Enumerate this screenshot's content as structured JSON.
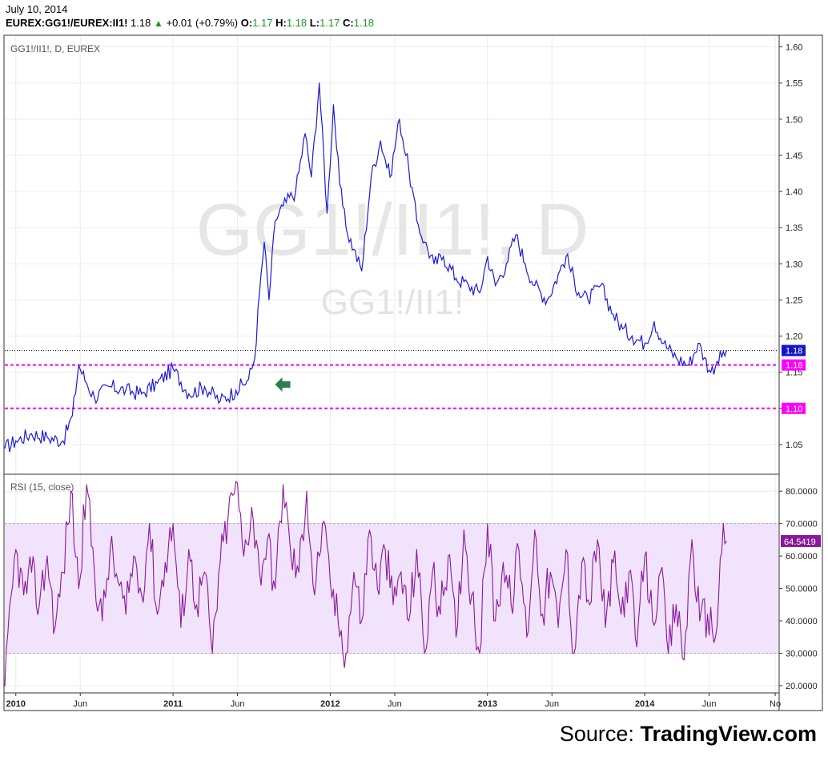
{
  "header": {
    "date": "July 10, 2014",
    "symbol": "EUREX:GG1!/EUREX:II1!",
    "last": "1.18",
    "change": "+0.01 (+0.79%)",
    "open_label": "O:",
    "open": "1.17",
    "high_label": "H:",
    "high": "1.18",
    "low_label": "L:",
    "low": "1.17",
    "close_label": "C:",
    "close": "1.18"
  },
  "source": {
    "prefix": "Source: ",
    "brand": "TradingView.com"
  },
  "colors": {
    "price_line": "#1b1bd6",
    "rsi_line": "#8b189c",
    "rsi_band": "#f1e3fb",
    "support_lines": "#ff00ff",
    "price_tag": "#1515c8",
    "rsi_tag": "#8b189c",
    "arrow": "#2e7d4e"
  },
  "chart_data": [
    {
      "type": "line",
      "panel": "price",
      "title": "GG1!/II1!, D, EUREX",
      "watermark": "GG1!/II1!, D",
      "watermark_sub": "GG1!/II1!",
      "x_ticks": [
        "2010",
        "Jun",
        "2011",
        "Jun",
        "2012",
        "Jun",
        "2013",
        "Jun",
        "2014",
        "Jun",
        "No"
      ],
      "y_ticks": [
        "1.05",
        "1.10",
        "1.15",
        "1.20",
        "1.25",
        "1.30",
        "1.35",
        "1.40",
        "1.45",
        "1.50",
        "1.55",
        "1.60"
      ],
      "ylim": [
        1.01,
        1.615
      ],
      "series": [
        {
          "x": [
            2009.93,
            2010.0,
            2010.1,
            2010.2,
            2010.3,
            2010.36,
            2010.4,
            2010.45,
            2010.5,
            2010.6,
            2010.7,
            2010.8,
            2010.9,
            2011.0,
            2011.1,
            2011.2,
            2011.3,
            2011.4,
            2011.48,
            2011.52,
            2011.55,
            2011.58,
            2011.61,
            2011.65,
            2011.7,
            2011.78,
            2011.84,
            2011.88,
            2011.93,
            2011.98,
            2012.02,
            2012.06,
            2012.1,
            2012.15,
            2012.2,
            2012.26,
            2012.32,
            2012.38,
            2012.44,
            2012.5,
            2012.55,
            2012.6,
            2012.66,
            2012.72,
            2012.8,
            2012.88,
            2012.95,
            2013.0,
            2013.05,
            2013.12,
            2013.18,
            2013.24,
            2013.3,
            2013.38,
            2013.46,
            2013.5,
            2013.58,
            2013.64,
            2013.72,
            2013.8,
            2013.86,
            2013.92,
            2014.0,
            2014.06,
            2014.12,
            2014.2,
            2014.28,
            2014.34,
            2014.38,
            2014.42,
            2014.46,
            2014.52
          ],
          "values": [
            1.045,
            1.055,
            1.065,
            1.06,
            1.055,
            1.09,
            1.16,
            1.135,
            1.115,
            1.13,
            1.125,
            1.12,
            1.135,
            1.155,
            1.12,
            1.13,
            1.11,
            1.125,
            1.14,
            1.17,
            1.26,
            1.33,
            1.25,
            1.36,
            1.38,
            1.4,
            1.48,
            1.42,
            1.55,
            1.37,
            1.52,
            1.41,
            1.35,
            1.32,
            1.29,
            1.42,
            1.47,
            1.42,
            1.5,
            1.43,
            1.36,
            1.33,
            1.3,
            1.31,
            1.28,
            1.27,
            1.26,
            1.31,
            1.27,
            1.3,
            1.34,
            1.3,
            1.27,
            1.25,
            1.29,
            1.31,
            1.26,
            1.25,
            1.27,
            1.23,
            1.21,
            1.2,
            1.19,
            1.22,
            1.19,
            1.17,
            1.16,
            1.19,
            1.17,
            1.15,
            1.165,
            1.18
          ]
        }
      ],
      "horizontal_lines": [
        {
          "value": 1.18,
          "label": "1.18",
          "style": "dotted-black"
        },
        {
          "value": 1.16,
          "label": "1.16",
          "style": "dashed-magenta"
        },
        {
          "value": 1.1,
          "label": "1.10",
          "style": "dashed-magenta"
        }
      ],
      "annotations": [
        {
          "type": "arrow-left",
          "x": 2011.7,
          "y": 1.133
        }
      ]
    },
    {
      "type": "line",
      "panel": "rsi",
      "title": "RSI (15, close)",
      "y_ticks": [
        "20.0000",
        "30.0000",
        "40.0000",
        "50.0000",
        "60.0000",
        "70.0000",
        "80.0000"
      ],
      "ylim": [
        18,
        85
      ],
      "band": [
        30,
        70
      ],
      "last_value_label": "64.5419",
      "series": [
        {
          "x": [
            2009.93,
            2010.0,
            2010.05,
            2010.1,
            2010.15,
            2010.2,
            2010.25,
            2010.3,
            2010.35,
            2010.4,
            2010.45,
            2010.5,
            2010.55,
            2010.6,
            2010.65,
            2010.7,
            2010.75,
            2010.8,
            2010.85,
            2010.9,
            2010.95,
            2011.0,
            2011.05,
            2011.1,
            2011.15,
            2011.2,
            2011.25,
            2011.3,
            2011.35,
            2011.4,
            2011.45,
            2011.5,
            2011.55,
            2011.6,
            2011.65,
            2011.7,
            2011.75,
            2011.8,
            2011.85,
            2011.9,
            2011.95,
            2012.0,
            2012.05,
            2012.1,
            2012.15,
            2012.2,
            2012.25,
            2012.3,
            2012.35,
            2012.4,
            2012.45,
            2012.5,
            2012.55,
            2012.6,
            2012.65,
            2012.7,
            2012.75,
            2012.8,
            2012.85,
            2012.9,
            2012.95,
            2013.0,
            2013.05,
            2013.1,
            2013.15,
            2013.2,
            2013.25,
            2013.3,
            2013.35,
            2013.4,
            2013.45,
            2013.5,
            2013.55,
            2013.6,
            2013.65,
            2013.7,
            2013.75,
            2013.8,
            2013.85,
            2013.9,
            2013.95,
            2014.0,
            2014.05,
            2014.1,
            2014.15,
            2014.2,
            2014.25,
            2014.3,
            2014.35,
            2014.4,
            2014.45,
            2014.5,
            2014.52
          ],
          "values": [
            20,
            62,
            48,
            55,
            45,
            60,
            38,
            55,
            80,
            50,
            82,
            55,
            40,
            62,
            52,
            42,
            60,
            48,
            70,
            42,
            58,
            70,
            38,
            62,
            45,
            55,
            30,
            58,
            72,
            83,
            60,
            75,
            55,
            65,
            50,
            82,
            60,
            55,
            80,
            48,
            70,
            52,
            40,
            30,
            55,
            40,
            68,
            50,
            62,
            45,
            55,
            40,
            62,
            30,
            55,
            42,
            60,
            35,
            68,
            48,
            30,
            70,
            40,
            58,
            45,
            62,
            35,
            68,
            42,
            55,
            38,
            62,
            30,
            58,
            45,
            65,
            38,
            58,
            42,
            55,
            32,
            60,
            40,
            55,
            30,
            45,
            28,
            65,
            40,
            42,
            35,
            70,
            64.5
          ]
        }
      ]
    }
  ]
}
